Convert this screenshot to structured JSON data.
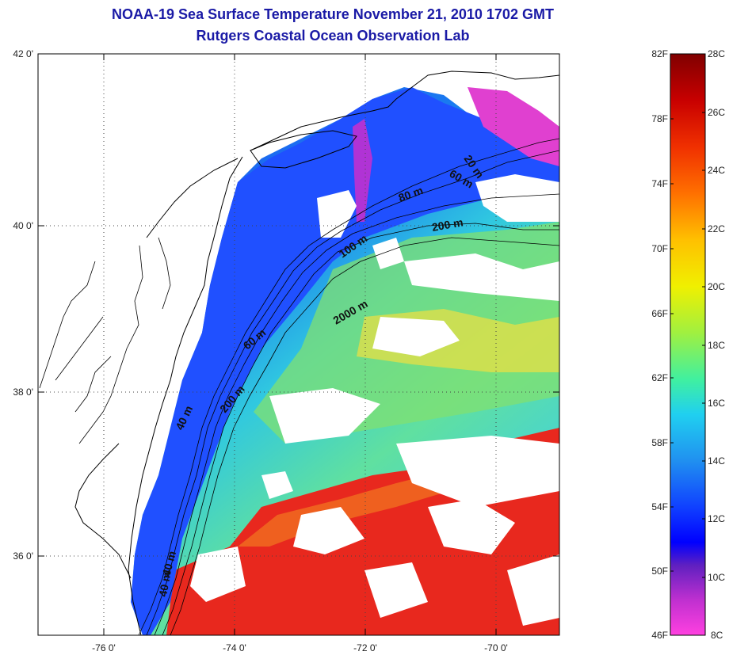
{
  "header": {
    "title": "NOAA-19 Sea Surface Temperature November 21, 2010 1702 GMT",
    "subtitle": "Rutgers Coastal Ocean Observation Lab"
  },
  "map": {
    "lat_ticks": [
      "42 0'",
      "40 0'",
      "38 0'",
      "36 0'"
    ],
    "lon_ticks": [
      "-76 0'",
      "-74 0'",
      "-72 0'",
      "-70 0'"
    ],
    "contour_labels": [
      "20 m",
      "60 m",
      "80 m",
      "200 m",
      "100 m",
      "2000 m",
      "60 m",
      "200 m",
      "40 m",
      "40 m",
      "40 m"
    ],
    "colors": {
      "land": "#ffffff",
      "cold_water": "#1e50ff",
      "warm_water": "#e8281e",
      "cloud": "#ffffff"
    }
  },
  "colorbar": {
    "fahrenheit_labels": [
      "82F",
      "78F",
      "74F",
      "70F",
      "66F",
      "62F",
      "58F",
      "54F",
      "50F",
      "46F"
    ],
    "celsius_labels": [
      "28C",
      "26C",
      "24C",
      "22C",
      "20C",
      "18C",
      "16C",
      "14C",
      "12C",
      "10C",
      "8C"
    ],
    "gradient_stops": [
      "#800000",
      "#c80000",
      "#f03000",
      "#ff7000",
      "#ffc000",
      "#f0f000",
      "#a0f040",
      "#40f0a0",
      "#20d0f0",
      "#2090f0",
      "#1040ff",
      "#0000ff",
      "#6020c0",
      "#c030d0",
      "#ff40e0"
    ]
  }
}
